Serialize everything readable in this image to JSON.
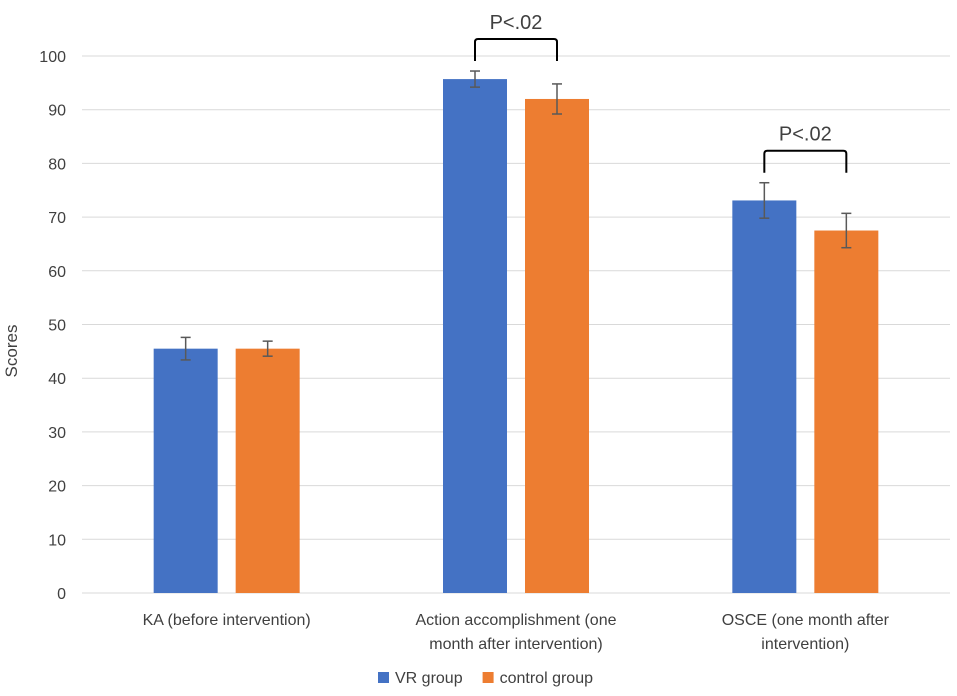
{
  "chart_data": {
    "type": "bar",
    "title": "",
    "xlabel": "",
    "ylabel": "Scores",
    "ylim": [
      0,
      100
    ],
    "yticks": [
      0,
      10,
      20,
      30,
      40,
      50,
      60,
      70,
      80,
      90,
      100
    ],
    "grid": true,
    "legend_position": "bottom",
    "categories": [
      [
        "KA (before intervention)"
      ],
      [
        "Action accomplishment (one",
        "month after intervention)"
      ],
      [
        "OSCE (one month after",
        "intervention)"
      ]
    ],
    "series": [
      {
        "name": "VR group",
        "color": "#4472C4",
        "values": [
          45.5,
          95.7,
          73.1
        ],
        "errors": [
          2.1,
          1.5,
          3.3
        ]
      },
      {
        "name": "control group",
        "color": "#ED7D31",
        "values": [
          45.5,
          92.0,
          67.5
        ],
        "errors": [
          1.4,
          2.8,
          3.2
        ]
      }
    ],
    "annotations": [
      {
        "text": "P<.02",
        "category_index": 1
      },
      {
        "text": "P<.02",
        "category_index": 2
      }
    ]
  }
}
